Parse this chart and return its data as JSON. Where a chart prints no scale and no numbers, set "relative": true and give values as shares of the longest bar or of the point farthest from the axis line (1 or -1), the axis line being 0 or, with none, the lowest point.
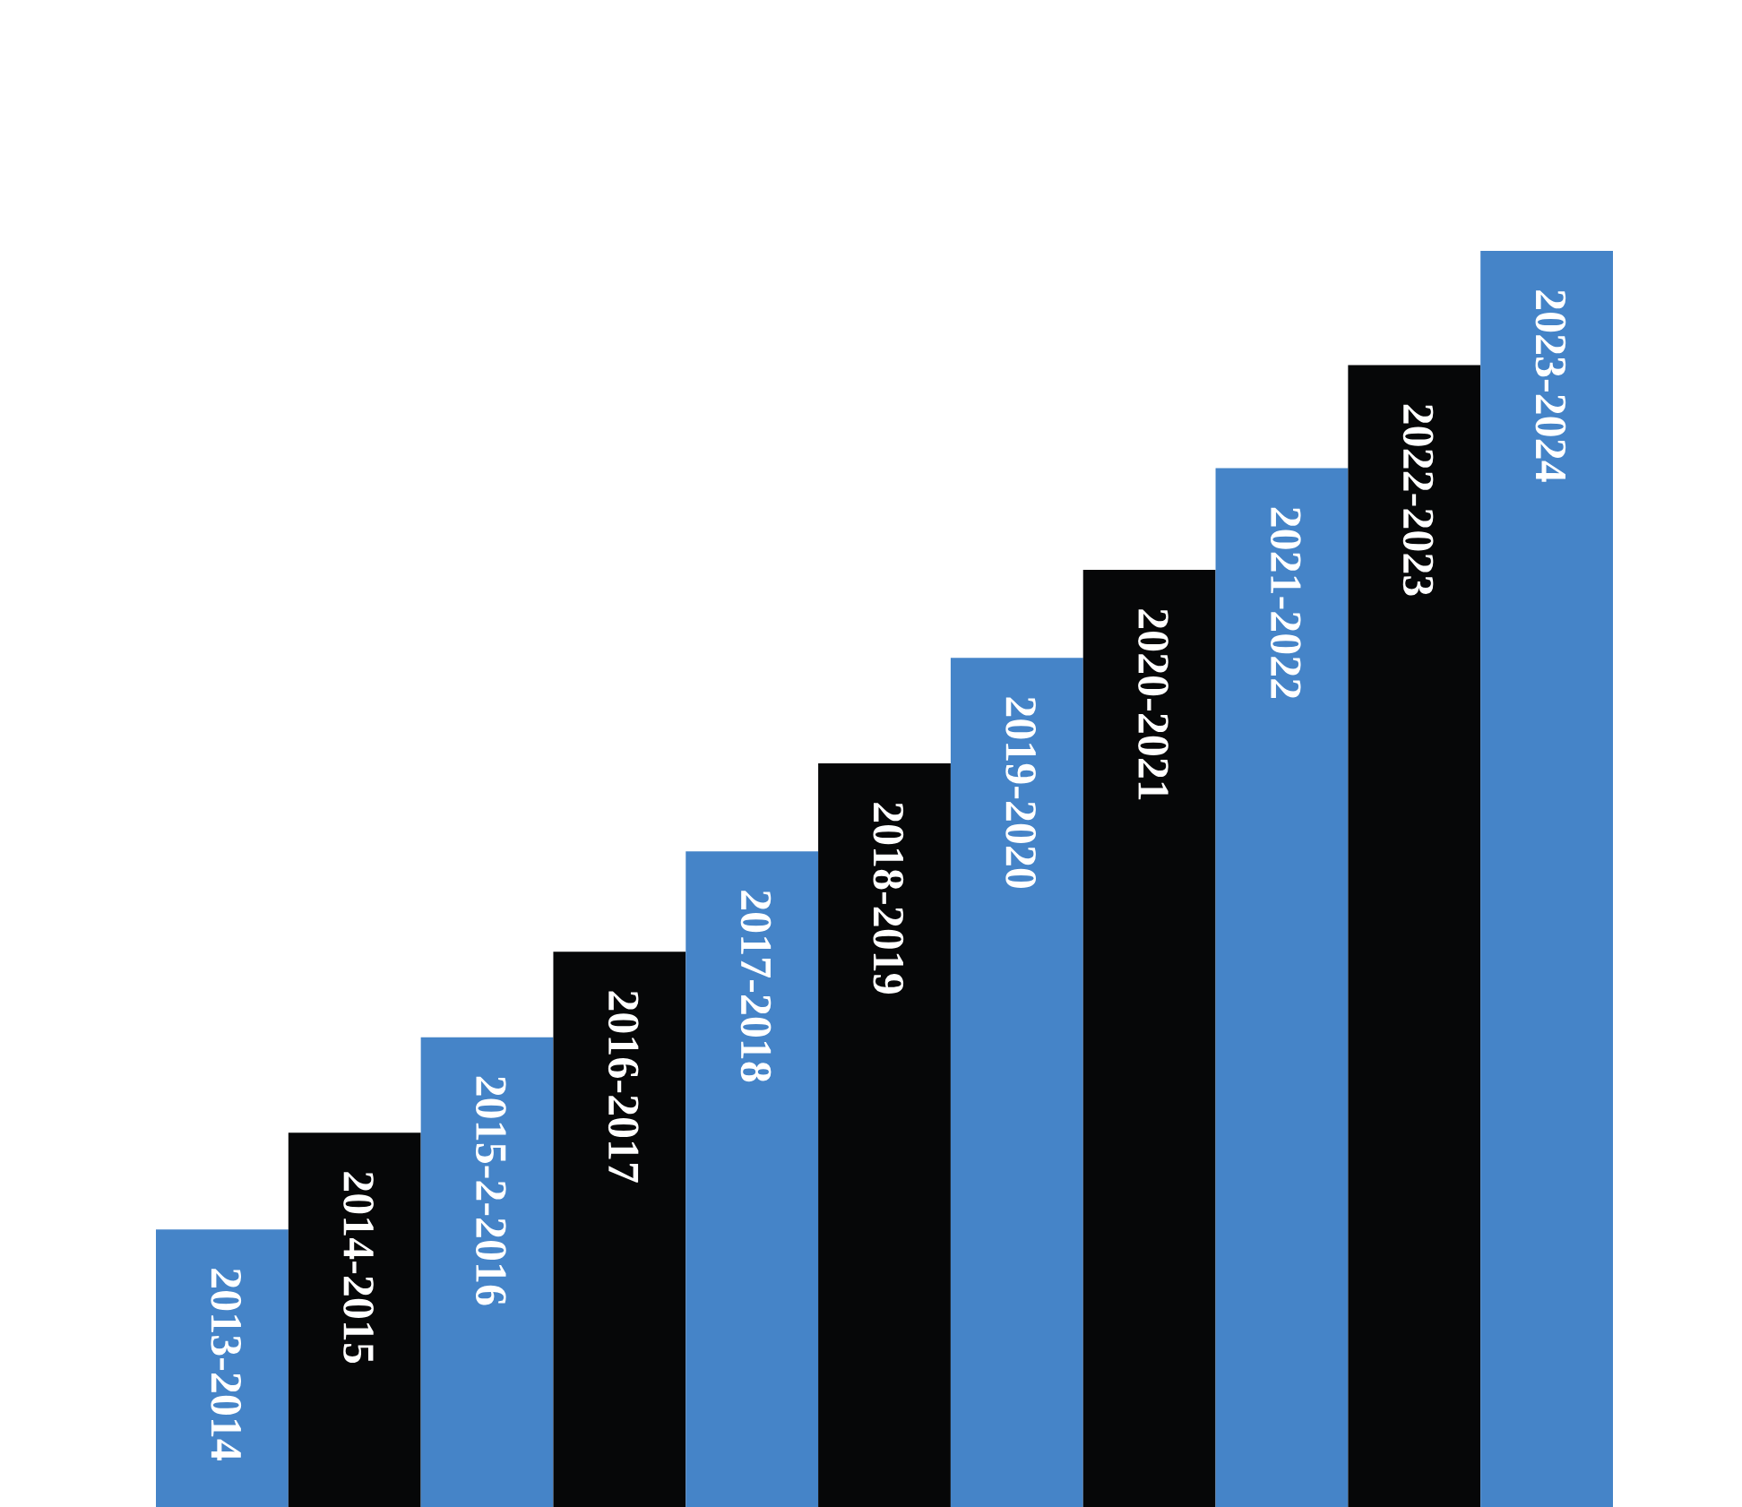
{
  "chart_data": {
    "type": "bar",
    "relative": true,
    "categories": [
      "2013-2014",
      "2014-2015",
      "2015-2-2016",
      "2016-2017",
      "2017-2018",
      "2018-2019",
      "2019-2020",
      "2020-2021",
      "2021-2022",
      "2022-2023",
      "2023-2024"
    ],
    "values": [
      0.221,
      0.298,
      0.374,
      0.442,
      0.522,
      0.592,
      0.676,
      0.746,
      0.827,
      0.909,
      1.0
    ],
    "colors": [
      "#4584c8",
      "#060708",
      "#4584c8",
      "#060708",
      "#4584c8",
      "#060708",
      "#4584c8",
      "#060708",
      "#4584c8",
      "#060708",
      "#4584c8"
    ],
    "legend": false
  }
}
